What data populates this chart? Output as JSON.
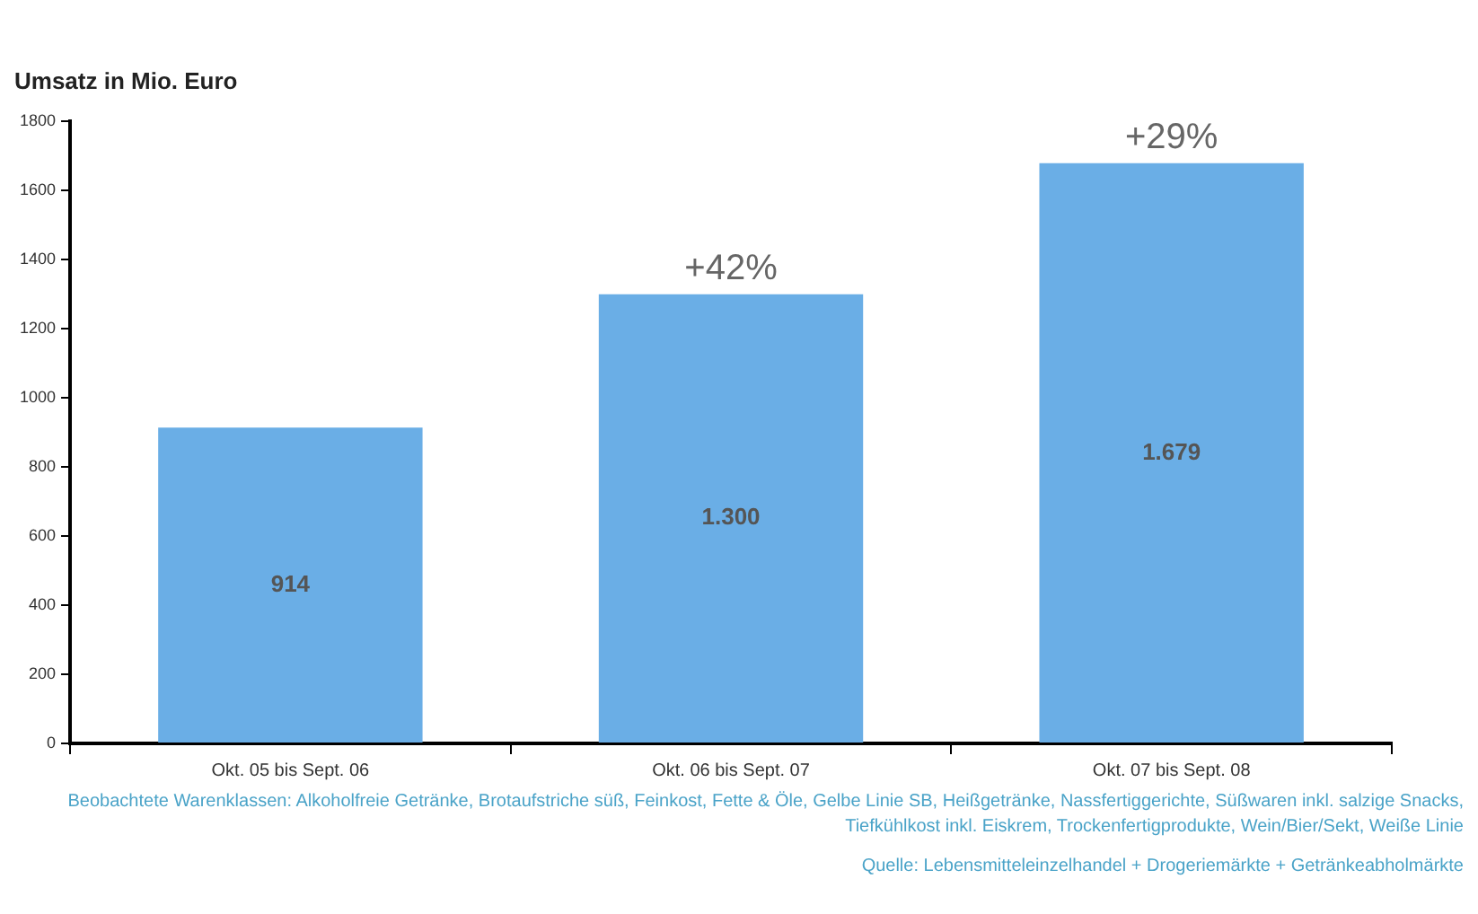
{
  "chart_data": {
    "type": "bar",
    "ylabel": "Umsatz in Mio. Euro",
    "categories": [
      "Okt. 05 bis Sept. 06",
      "Okt. 06 bis Sept. 07",
      "Okt. 07 bis Sept. 08"
    ],
    "values": [
      914,
      1300,
      1679
    ],
    "value_labels": [
      "914",
      "1.300",
      "1.679"
    ],
    "color": "#6aaee6",
    "ylim": [
      0,
      1800
    ],
    "yticks": [
      0,
      200,
      400,
      600,
      800,
      1000,
      1200,
      1400,
      1600,
      1800
    ],
    "grid": false,
    "legend": false,
    "annotations": [
      {
        "text": "+42%",
        "x": "Okt. 06 bis Sept. 07",
        "y": 1300
      },
      {
        "text": "+29%",
        "x": "Okt. 07 bis Sept. 08",
        "y": 1679
      },
      "Beobachtete Warenklassen: Alkoholfreie Getränke, Brotaufstriche süß, Feinkost, Fette & Öle, Gelbe Linie SB, Heißgetränke, Nassfertiggerichte, Süßwaren inkl. salzige Snacks, Tiefkühlkost inkl. Eiskrem, Trockenfertigprodukte, Wein/Bier/Sekt, Weiße Linie",
      "Quelle: Lebensmitteleinzelhandel + Drogeriemärkte + Getränkeabholmärkte"
    ]
  }
}
